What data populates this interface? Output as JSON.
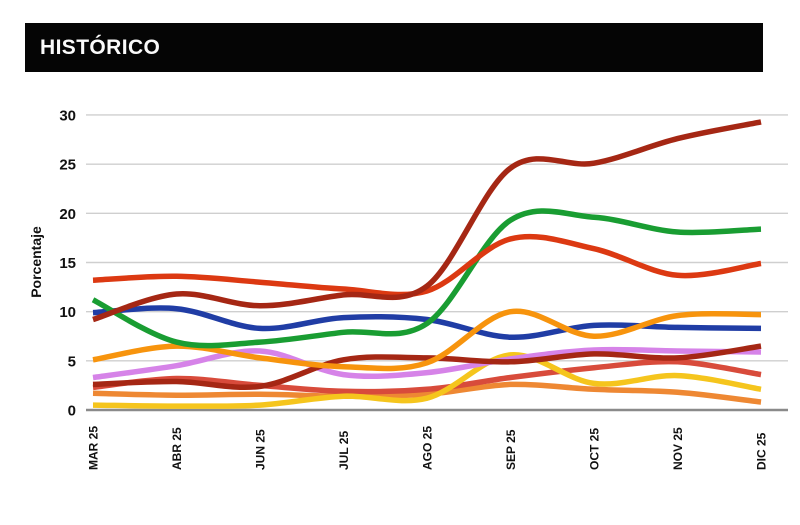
{
  "header": {
    "title": "HISTÓRICO"
  },
  "chart_data": {
    "type": "line",
    "title": "HISTÓRICO",
    "xlabel": "",
    "ylabel": "Porcentaje",
    "ylim": [
      0,
      30
    ],
    "yticks": [
      0,
      5,
      10,
      15,
      20,
      25,
      30
    ],
    "grid": true,
    "legend_position": "none",
    "line_style": "smooth-thick",
    "categories": [
      "MAR 25",
      "ABR 25",
      "JUN 25",
      "JUL 25",
      "AGO 25",
      "SEP 25",
      "OCT 25",
      "NOV 25",
      "DIC 25"
    ],
    "series": [
      {
        "id": "orange-2",
        "color": "#EE8833",
        "values": [
          1.7,
          1.5,
          1.6,
          1.4,
          1.6,
          2.6,
          2.1,
          1.8,
          0.8
        ]
      },
      {
        "id": "tomato-red",
        "color": "#D84B3B",
        "values": [
          2.3,
          3.2,
          2.5,
          1.9,
          2.1,
          3.3,
          4.3,
          4.9,
          3.6
        ]
      },
      {
        "id": "yellow",
        "color": "#F5C51D",
        "values": [
          0.5,
          0.4,
          0.5,
          1.4,
          1.2,
          5.6,
          2.7,
          3.5,
          2.1
        ]
      },
      {
        "id": "violet",
        "color": "#D683E8",
        "values": [
          3.3,
          4.5,
          6.0,
          3.6,
          3.8,
          5.2,
          6.1,
          6.0,
          5.9
        ]
      },
      {
        "id": "dark-red-2",
        "color": "#A52714",
        "values": [
          2.6,
          2.9,
          2.4,
          5.1,
          5.3,
          4.9,
          5.7,
          5.3,
          6.5
        ]
      },
      {
        "id": "blue",
        "color": "#203DA5",
        "values": [
          9.9,
          10.3,
          8.3,
          9.4,
          9.2,
          7.4,
          8.6,
          8.4,
          8.3
        ]
      },
      {
        "id": "orange",
        "color": "#F7940D",
        "values": [
          5.1,
          6.5,
          5.3,
          4.4,
          4.8,
          10.0,
          7.5,
          9.6,
          9.7
        ]
      },
      {
        "id": "green",
        "color": "#199D32",
        "values": [
          11.2,
          6.9,
          6.9,
          7.9,
          8.8,
          19.3,
          19.6,
          18.1,
          18.4
        ]
      },
      {
        "id": "red",
        "color": "#DC3912",
        "values": [
          13.2,
          13.6,
          13.0,
          12.3,
          12.1,
          17.4,
          16.4,
          13.7,
          14.9
        ]
      },
      {
        "id": "dark-red",
        "color": "#A52714",
        "values": [
          9.2,
          11.8,
          10.6,
          11.7,
          12.6,
          24.6,
          25.1,
          27.6,
          29.3
        ]
      }
    ],
    "axis_colors": {
      "gridline": "#CFCFCF",
      "baseline": "#8A8A8A",
      "tick_text": "#111111"
    }
  }
}
